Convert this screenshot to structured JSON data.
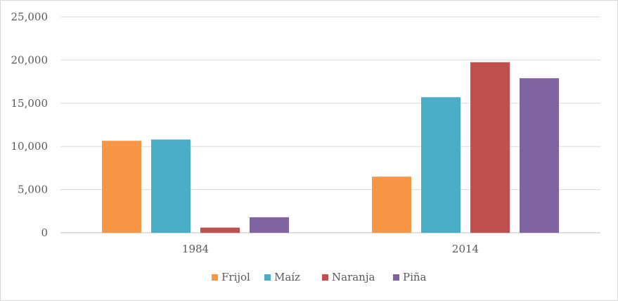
{
  "chart_data": {
    "type": "bar",
    "title": "",
    "xlabel": "",
    "ylabel": "",
    "categories": [
      "1984",
      "2014"
    ],
    "series": [
      {
        "name": "Frijol",
        "color": "#f79646",
        "values": [
          10650,
          6500
        ]
      },
      {
        "name": "Maíz",
        "color": "#4bacc6",
        "values": [
          10800,
          15700
        ]
      },
      {
        "name": "Naranja",
        "color": "#c0504d",
        "values": [
          600,
          19750
        ]
      },
      {
        "name": "Piña",
        "color": "#8064a2",
        "values": [
          1800,
          17900
        ]
      }
    ],
    "ylim": [
      0,
      25000
    ],
    "yticks": [
      0,
      5000,
      10000,
      15000,
      20000,
      25000
    ],
    "ytick_labels": [
      "0",
      "5,000",
      "10,000",
      "15,000",
      "20,000",
      "25,000"
    ],
    "grid": true,
    "legend_position": "bottom"
  }
}
